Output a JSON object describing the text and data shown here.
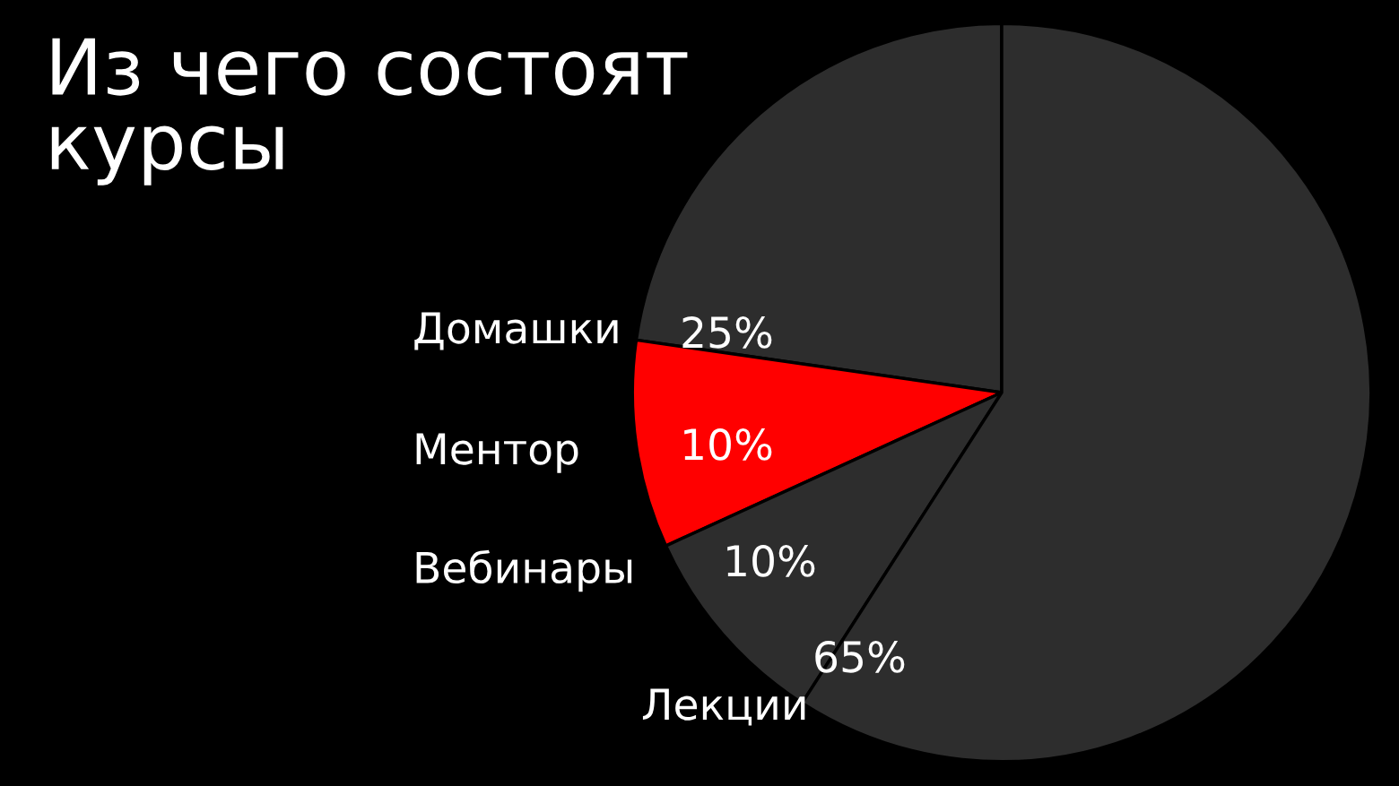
{
  "chart_data": {
    "type": "pie",
    "title": "Из чего состоят\nкурсы",
    "categories": [
      "Домашки",
      "Ментор",
      "Вебинары",
      "Лекции"
    ],
    "values": [
      25,
      10,
      10,
      65
    ],
    "value_labels": [
      "25%",
      "10%",
      "10%",
      "65%"
    ],
    "colors": [
      "#2d2d2d",
      "#ff0000",
      "#2d2d2d",
      "#2d2d2d"
    ]
  }
}
